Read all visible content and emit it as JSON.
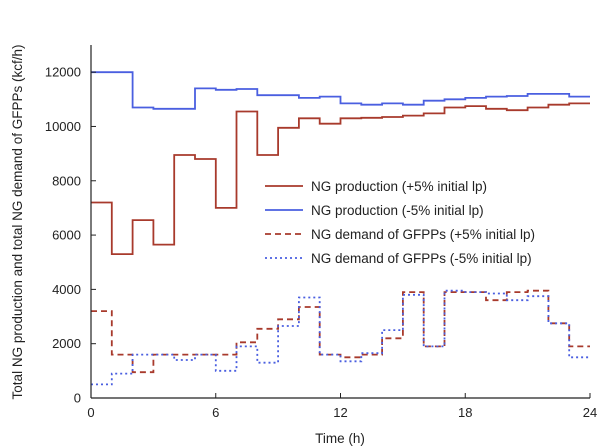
{
  "chart_data": {
    "type": "line",
    "step": true,
    "xlabel": "Time (h)",
    "ylabel": "Total NG production and total NG demand of GFPPs (kcf/h)",
    "xlim": [
      0,
      24
    ],
    "ylim": [
      0,
      13000
    ],
    "xticks": [
      0,
      6,
      12,
      18,
      24
    ],
    "yticks": [
      0,
      2000,
      4000,
      6000,
      8000,
      10000,
      12000
    ],
    "grid": false,
    "legend_position": "center-right",
    "series": [
      {
        "name": "NG production (+5% initial lp)",
        "color": "#a83a2c",
        "dash": "solid",
        "hours": [
          0,
          1,
          2,
          3,
          4,
          5,
          6,
          7,
          8,
          9,
          10,
          11,
          12,
          13,
          14,
          15,
          16,
          17,
          18,
          19,
          20,
          21,
          22,
          23
        ],
        "values": [
          7200,
          5300,
          6550,
          5650,
          8950,
          8800,
          7000,
          10550,
          8950,
          9950,
          10300,
          10100,
          10300,
          10320,
          10350,
          10400,
          10480,
          10700,
          10750,
          10650,
          10600,
          10700,
          10800,
          10850
        ]
      },
      {
        "name": "NG production (-5% initial lp)",
        "color": "#4a5fe0",
        "dash": "solid",
        "hours": [
          0,
          1,
          2,
          3,
          4,
          5,
          6,
          7,
          8,
          9,
          10,
          11,
          12,
          13,
          14,
          15,
          16,
          17,
          18,
          19,
          20,
          21,
          22,
          23
        ],
        "values": [
          12000,
          12000,
          10700,
          10650,
          10650,
          11400,
          11350,
          11380,
          11150,
          11150,
          11050,
          11100,
          10850,
          10800,
          10850,
          10800,
          10950,
          11000,
          11050,
          11100,
          11120,
          11200,
          11200,
          11100
        ]
      },
      {
        "name": "NG demand of GFPPs (+5% initial lp)",
        "color": "#a83a2c",
        "dash": "dashed",
        "hours": [
          0,
          1,
          2,
          3,
          4,
          5,
          6,
          7,
          8,
          9,
          10,
          11,
          12,
          13,
          14,
          15,
          16,
          17,
          18,
          19,
          20,
          21,
          22,
          23
        ],
        "values": [
          3200,
          1600,
          950,
          1600,
          1600,
          1600,
          1600,
          2050,
          2550,
          2900,
          3350,
          1600,
          1500,
          1600,
          2200,
          3900,
          1900,
          3900,
          3900,
          3600,
          3900,
          3950,
          2750,
          1900
        ]
      },
      {
        "name": "NG demand of GFPPs (-5% initial lp)",
        "color": "#4a5fe0",
        "dash": "dashdot",
        "hours": [
          0,
          1,
          2,
          3,
          4,
          5,
          6,
          7,
          8,
          9,
          10,
          11,
          12,
          13,
          14,
          15,
          16,
          17,
          18,
          19,
          20,
          21,
          22,
          23
        ],
        "values": [
          500,
          900,
          1600,
          1600,
          1400,
          1600,
          1000,
          1900,
          1300,
          2650,
          3700,
          1600,
          1350,
          1650,
          2500,
          3800,
          1900,
          3950,
          3900,
          3850,
          3600,
          3750,
          2750,
          1500
        ]
      }
    ]
  }
}
